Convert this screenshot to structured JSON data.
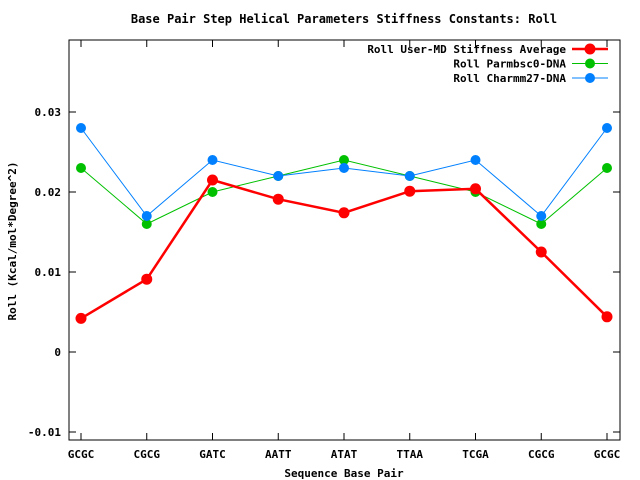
{
  "chart_data": {
    "type": "line",
    "title": "Base Pair Step Helical Parameters Stiffness Constants: Roll",
    "xlabel": "Sequence Base Pair",
    "ylabel": "Roll (Kcal/mol*Degree^2)",
    "categories": [
      "GCGC",
      "CGCG",
      "GATC",
      "AATT",
      "ATAT",
      "TTAA",
      "TCGA",
      "CGCG",
      "GCGC"
    ],
    "ylim": [
      -0.011,
      0.039
    ],
    "yticks": [
      -0.01,
      0,
      0.01,
      0.02,
      0.03
    ],
    "ytick_labels": [
      "-0.01",
      "0",
      "0.01",
      "0.02",
      "0.03"
    ],
    "grid": false,
    "legend_position": "top-right",
    "series": [
      {
        "name": "Roll User-MD Stiffness Average",
        "color": "#ff0000",
        "thick": true,
        "values": [
          0.0042,
          0.0091,
          0.0215,
          0.0191,
          0.0174,
          0.0201,
          0.0204,
          0.0125,
          0.0044
        ]
      },
      {
        "name": "Roll Parmbsc0-DNA",
        "color": "#00c000",
        "thick": false,
        "values": [
          0.023,
          0.016,
          0.02,
          0.022,
          0.024,
          0.022,
          0.02,
          0.016,
          0.023
        ]
      },
      {
        "name": "Roll Charmm27-DNA",
        "color": "#0080ff",
        "thick": false,
        "values": [
          0.028,
          0.017,
          0.024,
          0.022,
          0.023,
          0.022,
          0.024,
          0.017,
          0.028
        ]
      }
    ]
  }
}
